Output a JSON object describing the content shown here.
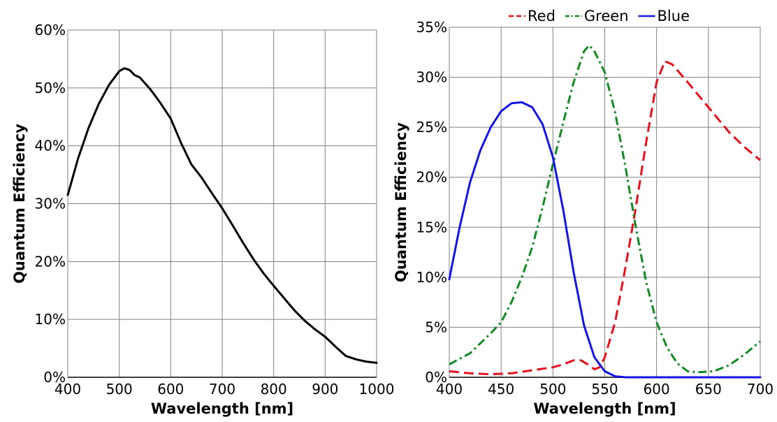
{
  "chart_data": [
    {
      "type": "line",
      "xlabel": "Wavelength [nm]",
      "ylabel": "Quantum Efficiency",
      "xlim": [
        400,
        1000
      ],
      "ylim": [
        0,
        60
      ],
      "grid": true,
      "x_ticks": [
        400,
        500,
        600,
        700,
        800,
        900,
        1000
      ],
      "x_tick_labels": [
        "400",
        "500",
        "600",
        "700",
        "800",
        "900",
        "1000"
      ],
      "y_ticks": [
        0,
        10,
        20,
        30,
        40,
        50,
        60
      ],
      "y_tick_labels": [
        "0%",
        "10%",
        "20%",
        "30%",
        "40%",
        "50%",
        "60%"
      ],
      "series": [
        {
          "color": "#000000",
          "dash": "solid",
          "points": [
            [
              400,
              31.5
            ],
            [
              420,
              37.8
            ],
            [
              440,
              43
            ],
            [
              460,
              47.2
            ],
            [
              480,
              50.5
            ],
            [
              500,
              52.9
            ],
            [
              510,
              53.4
            ],
            [
              520,
              53.1
            ],
            [
              530,
              52.2
            ],
            [
              540,
              51.8
            ],
            [
              560,
              49.8
            ],
            [
              580,
              47.4
            ],
            [
              600,
              44.7
            ],
            [
              620,
              40.5
            ],
            [
              640,
              36.8
            ],
            [
              660,
              34.5
            ],
            [
              680,
              31.8
            ],
            [
              700,
              29.2
            ],
            [
              720,
              26.3
            ],
            [
              740,
              23.3
            ],
            [
              760,
              20.5
            ],
            [
              780,
              18
            ],
            [
              800,
              15.8
            ],
            [
              820,
              13.7
            ],
            [
              840,
              11.6
            ],
            [
              860,
              9.8
            ],
            [
              880,
              8.3
            ],
            [
              900,
              7
            ],
            [
              920,
              5.3
            ],
            [
              940,
              3.7
            ],
            [
              960,
              3.1
            ],
            [
              980,
              2.7
            ],
            [
              1000,
              2.5
            ]
          ]
        }
      ]
    },
    {
      "type": "line",
      "xlabel": "Wavelength [nm]",
      "ylabel": "Quantum Efficiency",
      "xlim": [
        400,
        700
      ],
      "ylim": [
        0,
        35
      ],
      "grid": true,
      "legend": "top",
      "x_ticks": [
        400,
        450,
        500,
        550,
        600,
        650,
        700
      ],
      "x_tick_labels": [
        "400",
        "450",
        "500",
        "550",
        "600",
        "650",
        "700"
      ],
      "y_ticks": [
        0,
        5,
        10,
        15,
        20,
        25,
        30,
        35
      ],
      "y_tick_labels": [
        "0%",
        "5%",
        "10%",
        "15%",
        "20%",
        "25%",
        "30%",
        "35%"
      ],
      "series": [
        {
          "name": "Red",
          "color": "#e8101c",
          "dash": "dashed",
          "points": [
            [
              400,
              0.6
            ],
            [
              420,
              0.4
            ],
            [
              440,
              0.3
            ],
            [
              460,
              0.4
            ],
            [
              480,
              0.7
            ],
            [
              500,
              1
            ],
            [
              510,
              1.3
            ],
            [
              520,
              1.7
            ],
            [
              527,
              1.7
            ],
            [
              535,
              1.2
            ],
            [
              540,
              0.8
            ],
            [
              545,
              1
            ],
            [
              550,
              2
            ],
            [
              560,
              5.5
            ],
            [
              570,
              11
            ],
            [
              580,
              17
            ],
            [
              590,
              23.5
            ],
            [
              600,
              29.5
            ],
            [
              608,
              31.6
            ],
            [
              615,
              31.3
            ],
            [
              630,
              29.5
            ],
            [
              650,
              27
            ],
            [
              670,
              24.5
            ],
            [
              685,
              23
            ],
            [
              700,
              21.7
            ]
          ]
        },
        {
          "name": "Green",
          "color": "#118a22",
          "dash": "dashdot",
          "points": [
            [
              400,
              1.3
            ],
            [
              420,
              2.4
            ],
            [
              440,
              4.4
            ],
            [
              450,
              5.5
            ],
            [
              460,
              7.5
            ],
            [
              470,
              10
            ],
            [
              480,
              13
            ],
            [
              490,
              17
            ],
            [
              500,
              21.3
            ],
            [
              510,
              25.5
            ],
            [
              520,
              29.5
            ],
            [
              530,
              32.6
            ],
            [
              535,
              33.2
            ],
            [
              540,
              32.6
            ],
            [
              550,
              30.5
            ],
            [
              560,
              26.5
            ],
            [
              570,
              21
            ],
            [
              580,
              15
            ],
            [
              590,
              9.5
            ],
            [
              600,
              5.5
            ],
            [
              610,
              3
            ],
            [
              620,
              1.4
            ],
            [
              630,
              0.6
            ],
            [
              640,
              0.5
            ],
            [
              655,
              0.6
            ],
            [
              670,
              1.2
            ],
            [
              685,
              2.3
            ],
            [
              700,
              3.6
            ]
          ]
        },
        {
          "name": "Blue",
          "color": "#1414e6",
          "dash": "solid",
          "points": [
            [
              400,
              9.8
            ],
            [
              410,
              15
            ],
            [
              420,
              19.5
            ],
            [
              430,
              22.7
            ],
            [
              440,
              25
            ],
            [
              450,
              26.6
            ],
            [
              460,
              27.4
            ],
            [
              470,
              27.5
            ],
            [
              480,
              27
            ],
            [
              490,
              25.3
            ],
            [
              500,
              22
            ],
            [
              510,
              16.7
            ],
            [
              520,
              10.5
            ],
            [
              530,
              5.2
            ],
            [
              540,
              2
            ],
            [
              550,
              0.6
            ],
            [
              560,
              0.1
            ],
            [
              570,
              0
            ],
            [
              600,
              0
            ],
            [
              650,
              0
            ],
            [
              700,
              0
            ]
          ]
        }
      ]
    }
  ]
}
